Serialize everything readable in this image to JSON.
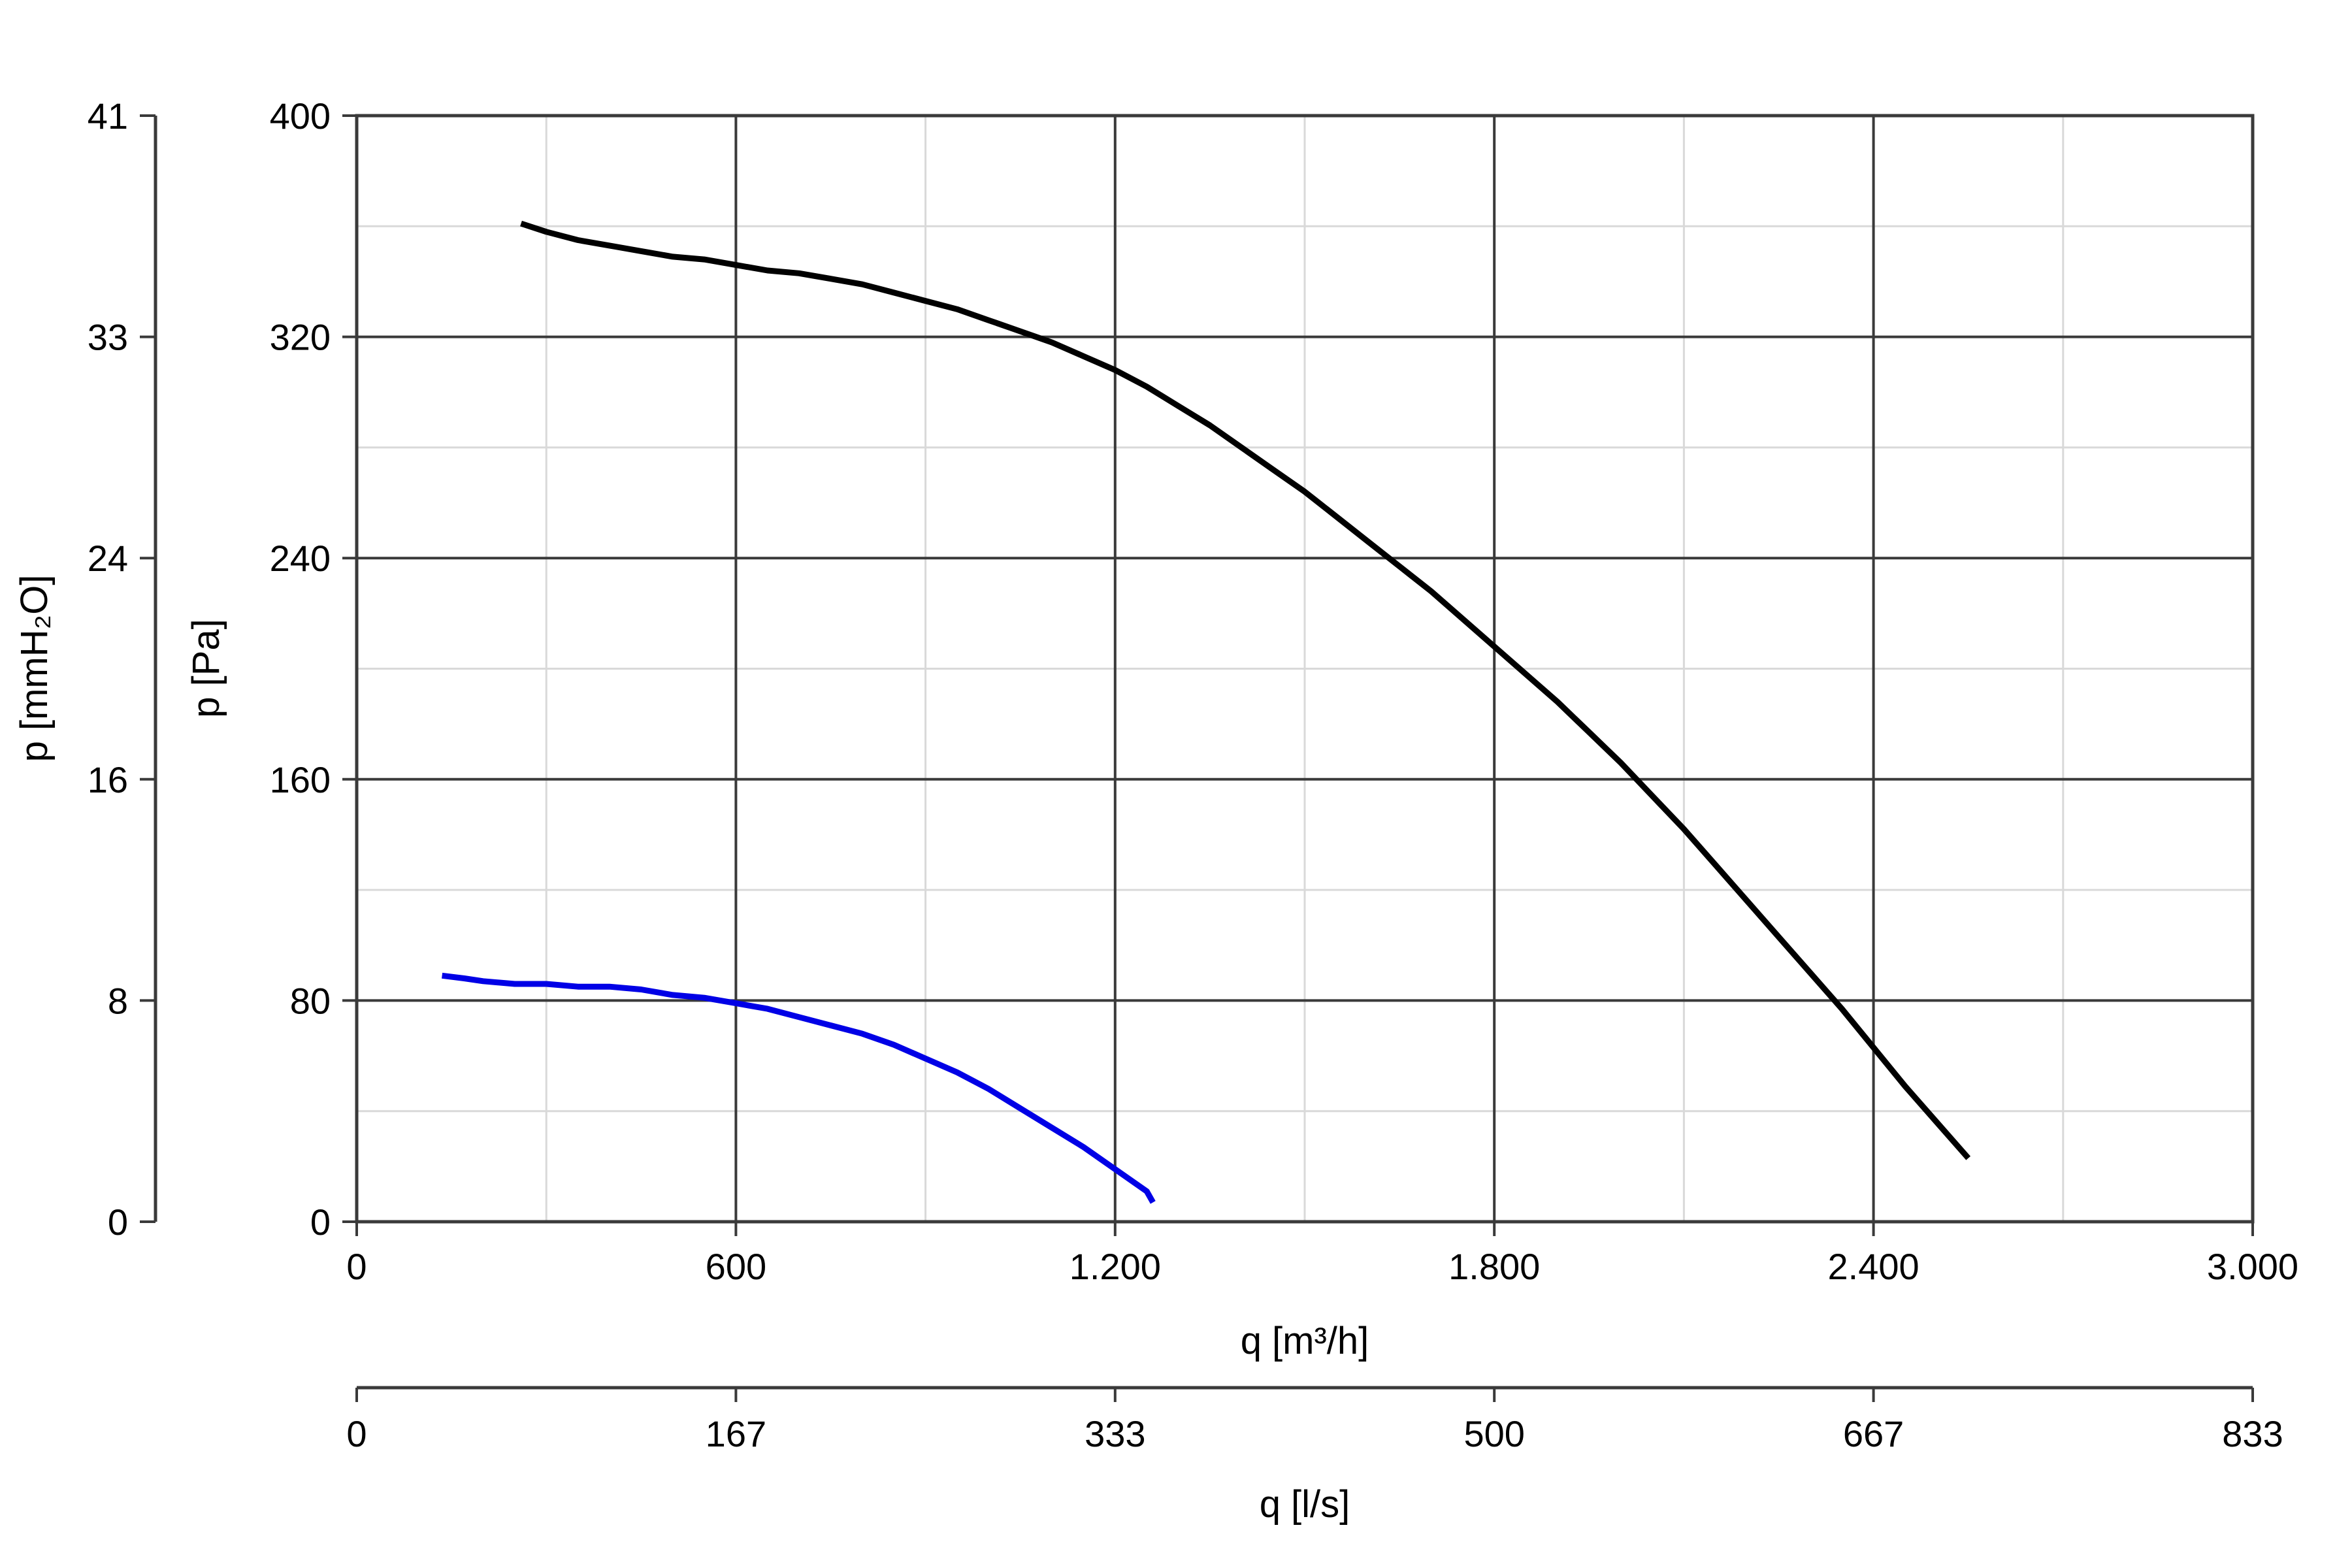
{
  "chart_data": {
    "type": "line",
    "xlabel": "q [m³/h]",
    "x2label": "q [l/s]",
    "ylabel": "p [Pa]",
    "y2label": "p [mmH₂O]",
    "xlim": [
      0,
      3000
    ],
    "ylim": [
      0,
      400
    ],
    "x_ticks": [
      "0",
      "600",
      "1.200",
      "1.800",
      "2.400",
      "3.000"
    ],
    "x2_ticks": [
      "0",
      "167",
      "333",
      "500",
      "667",
      "833"
    ],
    "y_ticks": [
      "0",
      "80",
      "160",
      "240",
      "320",
      "400"
    ],
    "y2_ticks": [
      "0",
      "8",
      "16",
      "24",
      "33",
      "41"
    ],
    "grid": true,
    "series": [
      {
        "color": "#000000",
        "x": [
          260,
          300,
          350,
          400,
          450,
          500,
          550,
          600,
          650,
          700,
          750,
          800,
          850,
          900,
          950,
          1000,
          1050,
          1100,
          1150,
          1200,
          1250,
          1300,
          1350,
          1400,
          1450,
          1500,
          1550,
          1600,
          1650,
          1700,
          1750,
          1800,
          1850,
          1900,
          1950,
          2000,
          2050,
          2100,
          2150,
          2200,
          2250,
          2300,
          2350,
          2400,
          2450,
          2500,
          2550
        ],
        "y": [
          361,
          358,
          355,
          353,
          351,
          349,
          348,
          346,
          344,
          343,
          341,
          339,
          336,
          333,
          330,
          326,
          322,
          318,
          313,
          308,
          302,
          295,
          288,
          280,
          272,
          264,
          255,
          246,
          237,
          228,
          218,
          208,
          198,
          188,
          177,
          166,
          154,
          142,
          129,
          116,
          103,
          90,
          77,
          63,
          49,
          36,
          23
        ]
      },
      {
        "color": "#0000e6",
        "x": [
          135,
          170,
          200,
          250,
          300,
          350,
          400,
          450,
          500,
          550,
          600,
          650,
          700,
          750,
          800,
          850,
          900,
          950,
          1000,
          1050,
          1100,
          1150,
          1200,
          1250,
          1260
        ],
        "y": [
          89,
          88,
          87,
          86,
          86,
          85,
          85,
          84,
          82,
          81,
          79,
          77,
          74,
          71,
          68,
          64,
          59,
          54,
          48,
          41,
          34,
          27,
          19,
          11,
          7
        ]
      }
    ]
  }
}
